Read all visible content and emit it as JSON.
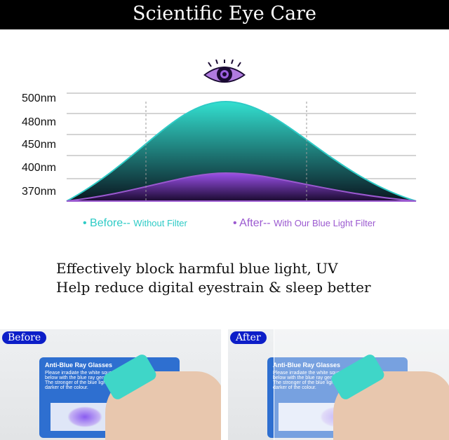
{
  "banner": {
    "title": "Scientific Eye Care"
  },
  "chart": {
    "y_labels": [
      "500nm",
      "480nm",
      "450nm",
      "400nm",
      "370nm"
    ],
    "legend": [
      {
        "label": "Before--",
        "sub": "Without Filter",
        "color": "#2ecbc6"
      },
      {
        "label": "After--",
        "sub": "With Our Blue Light Filter",
        "color": "#9b59d0"
      }
    ]
  },
  "tagline": [
    "Effectively block harmful blue light, UV",
    "Help reduce digital eyestrain & sleep better"
  ],
  "photos": [
    {
      "label": "Before",
      "card_title": "Anti-Blue Ray Glasses",
      "card_text": "Please irradiate the white square below with the blue ray generator. The stronger of the blue light, the darker of the colour."
    },
    {
      "label": "After",
      "card_title": "Anti-Blue Ray Glasses",
      "card_text": "Please irradiate the white square below with the blue ray generator. The stronger of the blue light, the darker of the colour."
    }
  ]
}
